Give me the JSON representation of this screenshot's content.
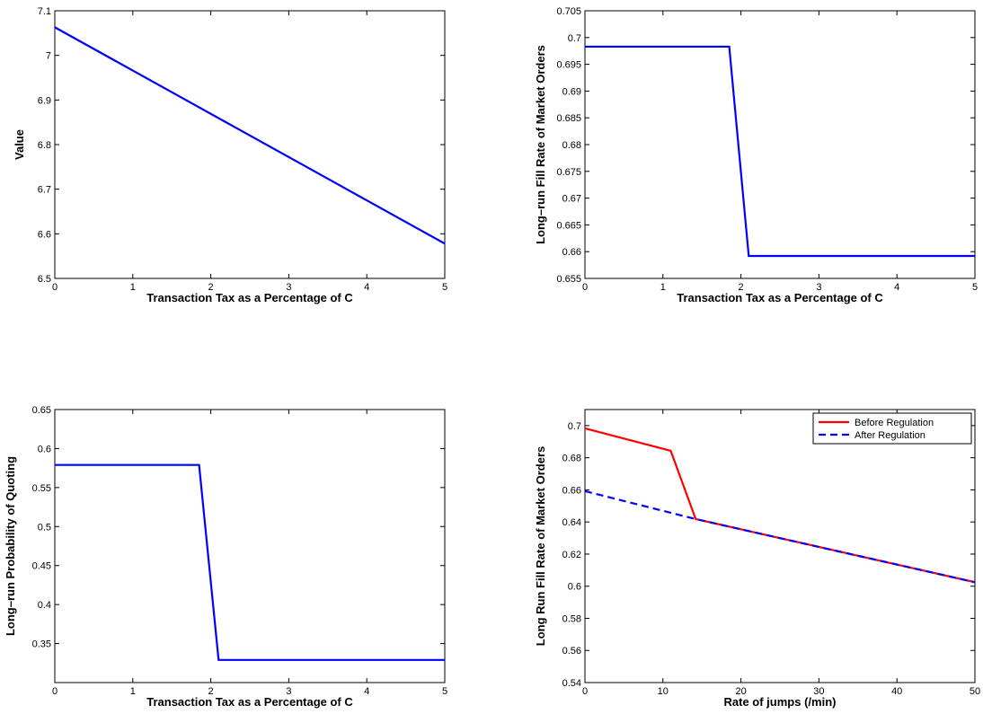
{
  "chart_data": [
    {
      "type": "line",
      "xlabel": "Transaction Tax as a Percentage of C",
      "ylabel": "Value",
      "xlim": [
        0,
        5
      ],
      "ylim": [
        6.5,
        7.1
      ],
      "xticks": [
        0,
        1,
        2,
        3,
        4,
        5
      ],
      "yticks": [
        6.5,
        6.6,
        6.7,
        6.8,
        6.9,
        7,
        7.1
      ],
      "xtick_labels": [
        "0",
        "1",
        "2",
        "3",
        "4",
        "5"
      ],
      "ytick_labels": [
        "6.5",
        "6.6",
        "6.7",
        "6.8",
        "6.9",
        "7",
        "7.1"
      ],
      "grid": false,
      "series": [
        {
          "color": "#0000ff",
          "dash": "solid",
          "x": [
            0,
            5
          ],
          "y": [
            7.063,
            6.578
          ]
        }
      ]
    },
    {
      "type": "line",
      "xlabel": "Transaction Tax as a Percentage of C",
      "ylabel": "Long–run Fill Rate of Market Orders",
      "xlim": [
        0,
        5
      ],
      "ylim": [
        0.655,
        0.705
      ],
      "xticks": [
        0,
        1,
        2,
        3,
        4,
        5
      ],
      "yticks": [
        0.655,
        0.66,
        0.665,
        0.67,
        0.675,
        0.68,
        0.685,
        0.69,
        0.695,
        0.7,
        0.705
      ],
      "xtick_labels": [
        "0",
        "1",
        "2",
        "3",
        "4",
        "5"
      ],
      "ytick_labels": [
        "0.655",
        "0.66",
        "0.665",
        "0.67",
        "0.675",
        "0.68",
        "0.685",
        "0.69",
        "0.695",
        "0.7",
        "0.705"
      ],
      "grid": false,
      "series": [
        {
          "color": "#0000ff",
          "dash": "solid",
          "x": [
            0,
            1.85,
            2.1,
            5
          ],
          "y": [
            0.6983,
            0.6983,
            0.6592,
            0.6592
          ]
        }
      ]
    },
    {
      "type": "line",
      "xlabel": "Transaction Tax as a Percentage of C",
      "ylabel": "Long–run Probability of Quoting",
      "xlim": [
        0,
        5
      ],
      "ylim": [
        0.3,
        0.65
      ],
      "xticks": [
        0,
        1,
        2,
        3,
        4,
        5
      ],
      "yticks": [
        0.35,
        0.4,
        0.45,
        0.5,
        0.55,
        0.6,
        0.65
      ],
      "xtick_labels": [
        "0",
        "1",
        "2",
        "3",
        "4",
        "5"
      ],
      "ytick_labels": [
        "0.35",
        "0.4",
        "0.45",
        "0.5",
        "0.55",
        "0.6",
        "0.65"
      ],
      "grid": false,
      "series": [
        {
          "color": "#0000ff",
          "dash": "solid",
          "x": [
            0,
            1.85,
            2.1,
            5
          ],
          "y": [
            0.579,
            0.579,
            0.329,
            0.329
          ]
        }
      ]
    },
    {
      "type": "line",
      "xlabel": "Rate of jumps (/min)",
      "ylabel": "Long Run Fill Rate of Market Orders",
      "xlim": [
        0,
        50
      ],
      "ylim": [
        0.54,
        0.71
      ],
      "xticks": [
        0,
        10,
        20,
        30,
        40,
        50
      ],
      "yticks": [
        0.54,
        0.56,
        0.58,
        0.6,
        0.62,
        0.64,
        0.66,
        0.68,
        0.7
      ],
      "xtick_labels": [
        "0",
        "10",
        "20",
        "30",
        "40",
        "50"
      ],
      "ytick_labels": [
        "0.54",
        "0.56",
        "0.58",
        "0.6",
        "0.62",
        "0.64",
        "0.66",
        "0.68",
        "0.7"
      ],
      "grid": false,
      "legend": "top-right",
      "series": [
        {
          "name": "Before Regulation",
          "color": "#ff0000",
          "dash": "solid",
          "x": [
            0,
            11,
            14.2,
            50
          ],
          "y": [
            0.6983,
            0.6843,
            0.6418,
            0.6025
          ]
        },
        {
          "name": "After Regulation",
          "color": "#0000ff",
          "dash": "dashed",
          "x": [
            0,
            14.2,
            50
          ],
          "y": [
            0.6592,
            0.6418,
            0.6025
          ]
        }
      ]
    }
  ]
}
